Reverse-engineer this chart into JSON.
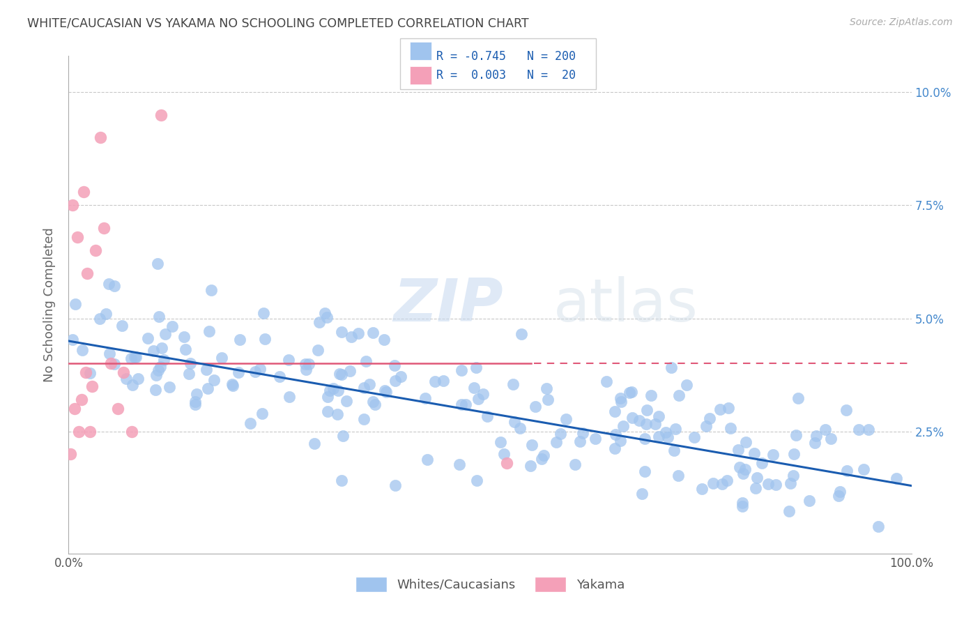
{
  "title": "WHITE/CAUCASIAN VS YAKAMA NO SCHOOLING COMPLETED CORRELATION CHART",
  "source": "Source: ZipAtlas.com",
  "ylabel": "No Schooling Completed",
  "watermark_text": "ZIP",
  "watermark_text2": "atlas",
  "legend_blue_R": "-0.745",
  "legend_blue_N": "200",
  "legend_pink_R": "0.003",
  "legend_pink_N": "20",
  "label_blue": "Whites/Caucasians",
  "label_pink": "Yakama",
  "blue_scatter_color": "#a0c4ee",
  "pink_scatter_color": "#f4a0b8",
  "blue_line_color": "#1a5cb0",
  "pink_line_color": "#e05878",
  "grid_color": "#c8c8c8",
  "background_color": "#ffffff",
  "title_color": "#444444",
  "axis_label_color": "#666666",
  "right_tick_color": "#4488cc",
  "yticks": [
    0.0,
    0.025,
    0.05,
    0.075,
    0.1
  ],
  "ytick_labels": [
    "",
    "2.5%",
    "5.0%",
    "7.5%",
    "10.0%"
  ],
  "xtick_vals": [
    0.0,
    0.1,
    0.2,
    0.3,
    0.4,
    0.5,
    0.6,
    0.7,
    0.8,
    0.9,
    1.0
  ],
  "xtick_labels": [
    "0.0%",
    "",
    "",
    "",
    "",
    "",
    "",
    "",
    "",
    "",
    "100.0%"
  ],
  "xlim": [
    0.0,
    1.0
  ],
  "ylim": [
    -0.002,
    0.108
  ],
  "blue_line_start_x": 0.0,
  "blue_line_start_y": 0.045,
  "blue_line_end_x": 1.0,
  "blue_line_end_y": 0.013,
  "pink_line_start_x": 0.0,
  "pink_line_start_y": 0.04,
  "pink_line_end_x": 1.0,
  "pink_line_end_y": 0.04
}
